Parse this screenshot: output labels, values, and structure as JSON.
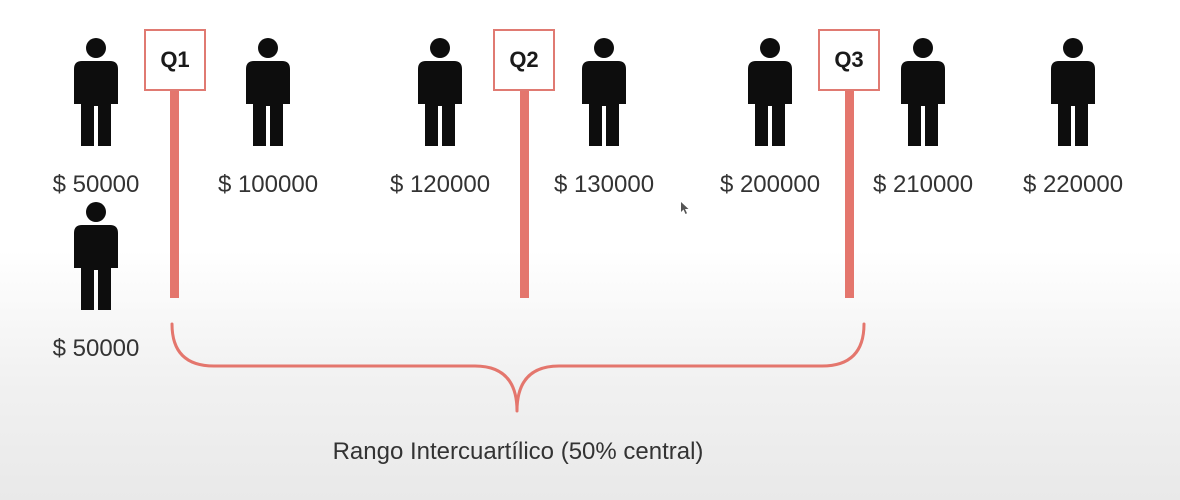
{
  "people": [
    {
      "salary": "$ 50000",
      "icon": "person-icon"
    },
    {
      "salary": "$ 100000",
      "icon": "person-icon"
    },
    {
      "salary": "$ 120000",
      "icon": "person-icon"
    },
    {
      "salary": "$ 130000",
      "icon": "person-icon"
    },
    {
      "salary": "$ 200000",
      "icon": "person-icon"
    },
    {
      "salary": "$ 210000",
      "icon": "person-icon"
    },
    {
      "salary": "$ 220000",
      "icon": "person-icon"
    },
    {
      "salary": "$ 50000",
      "icon": "person-icon"
    }
  ],
  "quartiles": [
    {
      "label": "Q1"
    },
    {
      "label": "Q2"
    },
    {
      "label": "Q3"
    }
  ],
  "range_label": "Rango Intercuartílico (50% central)",
  "colors": {
    "quartile_line": "#e4766d",
    "quartile_border": "#e07a72",
    "person": "#0d0d0d",
    "text": "#333333"
  }
}
